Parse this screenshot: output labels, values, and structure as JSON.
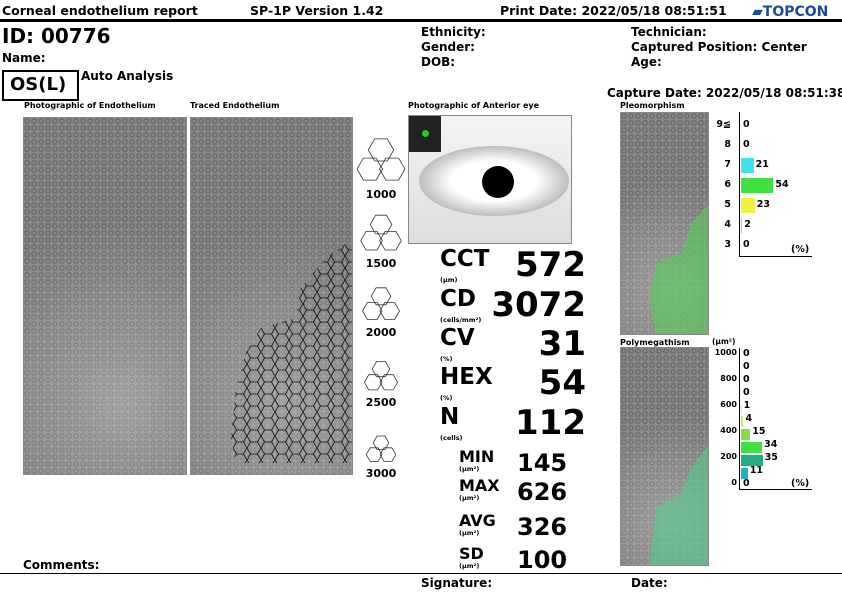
{
  "header": {
    "title": "Corneal endothelium report",
    "version": "SP-1P Version 1.42",
    "print_date": "Print Date: 2022/05/18 08:51:51",
    "logo": "TOPCON"
  },
  "patient": {
    "id": "ID: 00776",
    "name": "Name:",
    "eye": "OS(L)",
    "mode": "Auto Analysis",
    "ethnicity": "Ethnicity:",
    "gender": "Gender:",
    "dob": "DOB:",
    "technician": "Technician:",
    "captured_position": "Captured Position: Center",
    "age": "Age:",
    "capture_date": "Capture Date: 2022/05/18 08:51:38"
  },
  "panels": {
    "photo": "Photographic of Endothelium",
    "traced": "Traced Endothelium",
    "anterior": "Photographic of Anterior eye",
    "pleo": "Pleomorphism",
    "poly": "Polymegathism"
  },
  "density_scale": [
    "1000",
    "1500",
    "2000",
    "2500",
    "3000"
  ],
  "metrics": [
    {
      "label": "CCT",
      "unit": "(µm)",
      "value": "572"
    },
    {
      "label": "CD",
      "unit": "(cells/mm²)",
      "value": "3072"
    },
    {
      "label": "CV",
      "unit": "(%)",
      "value": "31"
    },
    {
      "label": "HEX",
      "unit": "(%)",
      "value": "54"
    },
    {
      "label": "N",
      "unit": "(cells)",
      "value": "112"
    }
  ],
  "area_stats": [
    {
      "label": "MIN",
      "unit": "(µm²)",
      "value": "145"
    },
    {
      "label": "MAX",
      "unit": "(µm²)",
      "value": "626"
    },
    {
      "label": "AVG",
      "unit": "(µm²)",
      "value": "326"
    },
    {
      "label": "SD",
      "unit": "(µm²)",
      "value": "100"
    }
  ],
  "chart_data": [
    {
      "type": "bar",
      "title": "Pleomorphism",
      "categories": [
        "9≦",
        "8",
        "7",
        "6",
        "5",
        "4",
        "3"
      ],
      "values": [
        0,
        0,
        21,
        54,
        23,
        2,
        0
      ],
      "colors": [
        "#000000",
        "#000000",
        "#40e0f0",
        "#40e040",
        "#f0f040",
        "#c0c0a0",
        "#000000"
      ],
      "xlabel": "(%)"
    },
    {
      "type": "bar",
      "title": "Polymegathism",
      "ylabel": "(µm²)",
      "tick_labels": [
        "1000",
        "",
        "800",
        "",
        "600",
        "",
        "400",
        "",
        "200",
        "",
        "0"
      ],
      "values": [
        0,
        0,
        0,
        0,
        1,
        4,
        15,
        34,
        35,
        11,
        0
      ],
      "colors": [
        "#000",
        "#000",
        "#000",
        "#000",
        "#e0f0a0",
        "#c8f080",
        "#80e040",
        "#40e040",
        "#20b080",
        "#20b0c0",
        "#000"
      ],
      "xlabel": "(%)"
    }
  ],
  "footer": {
    "comments": "Comments:",
    "signature": "Signature:",
    "date": "Date:"
  }
}
